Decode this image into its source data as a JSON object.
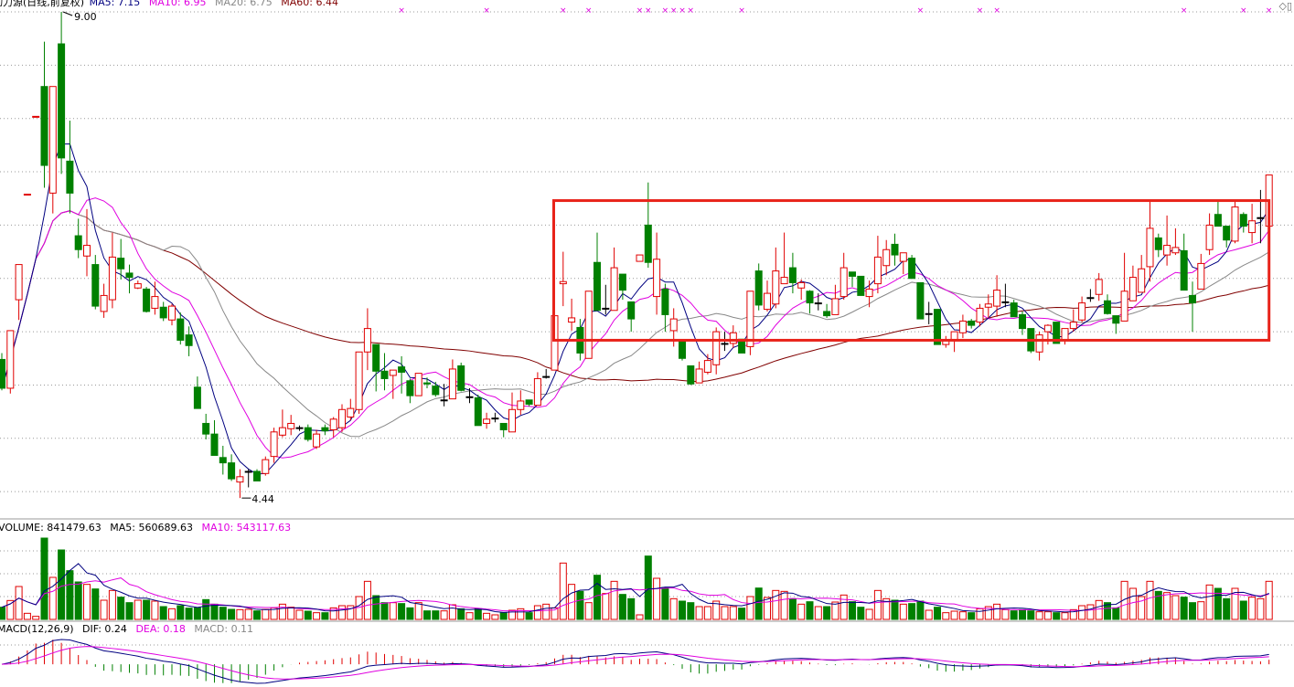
{
  "price_header": {
    "title": "动力源(日线,前复权)",
    "ma5": "MA5: 7.15",
    "ma10": "MA10: 6.95",
    "ma20": "MA20: 6.75",
    "ma60": "MA60: 6.44"
  },
  "volume_header": {
    "volume": "VOLUME: 841479.63",
    "ma5": "MA5: 560689.63",
    "ma10": "MA10: 543117.63"
  },
  "macd_header": {
    "name": "MACD(12,26,9)",
    "dif": "DIF: 0.24",
    "dea": "DEA: 0.18",
    "macd": "MACD: 0.11"
  },
  "corner_icons": [
    "diamond-icon",
    "window-icon"
  ],
  "colors": {
    "up": "#e00000",
    "down": "#008000",
    "flat": "#000000",
    "ma5": "#000080",
    "ma10": "#e000e0",
    "ma20": "#888888",
    "ma60": "#800000",
    "box": "#e8231a",
    "marker": "#e000e0"
  },
  "chart_data": {
    "type": "candlestick",
    "price_axis": {
      "ylim": [
        4.44,
        9.0
      ],
      "grid": [
        9.0,
        8.5,
        8.0,
        7.5,
        7.0,
        6.5,
        6.0,
        5.5,
        5.0,
        4.5
      ],
      "grid_on": true
    },
    "annotations": {
      "max_label": "9.00",
      "max_index": 7,
      "min_label": "4.44",
      "min_index": 28
    },
    "highlight_box": {
      "start_index": 65,
      "end_index": 149,
      "high": 7.23,
      "low": 5.92
    },
    "signal_marker_indices": [
      47,
      57,
      66,
      69,
      75,
      76,
      78,
      79,
      80,
      81,
      87,
      108,
      115,
      117,
      139,
      146,
      149
    ],
    "ohlc": [
      [
        5.74,
        5.8,
        5.45,
        5.47
      ],
      [
        5.47,
        6.01,
        5.42,
        6.01
      ],
      [
        6.3,
        6.63,
        6.11,
        6.63
      ],
      [
        7.29,
        7.29,
        7.29,
        7.29
      ],
      [
        8.02,
        8.02,
        8.02,
        8.02
      ],
      [
        8.3,
        8.72,
        7.35,
        7.56
      ],
      [
        7.3,
        8.3,
        7.11,
        8.3
      ],
      [
        8.7,
        9.0,
        7.48,
        7.63
      ],
      [
        7.6,
        7.98,
        7.11,
        7.3
      ],
      [
        6.9,
        7.06,
        6.69,
        6.77
      ],
      [
        6.71,
        7.15,
        6.52,
        6.81
      ],
      [
        6.63,
        6.72,
        6.21,
        6.24
      ],
      [
        6.19,
        6.45,
        6.13,
        6.34
      ],
      [
        6.3,
        6.93,
        6.22,
        6.7
      ],
      [
        6.69,
        6.87,
        6.49,
        6.59
      ],
      [
        6.55,
        6.63,
        6.36,
        6.51
      ],
      [
        6.41,
        6.48,
        6.4,
        6.45
      ],
      [
        6.4,
        6.42,
        6.18,
        6.19
      ],
      [
        6.22,
        6.47,
        6.16,
        6.33
      ],
      [
        6.23,
        6.28,
        6.1,
        6.13
      ],
      [
        6.11,
        6.26,
        6.06,
        6.24
      ],
      [
        6.12,
        6.18,
        5.88,
        5.92
      ],
      [
        5.97,
        6.05,
        5.77,
        5.87
      ],
      [
        5.48,
        5.58,
        5.28,
        5.28
      ],
      [
        5.14,
        5.23,
        4.99,
        5.04
      ],
      [
        5.04,
        5.17,
        4.84,
        4.84
      ],
      [
        4.82,
        4.93,
        4.66,
        4.77
      ],
      [
        4.77,
        4.85,
        4.6,
        4.62
      ],
      [
        4.59,
        4.71,
        4.44,
        4.64
      ],
      [
        4.69,
        4.71,
        4.54,
        4.69
      ],
      [
        4.69,
        4.71,
        4.6,
        4.6
      ],
      [
        4.67,
        4.83,
        4.65,
        4.8
      ],
      [
        4.83,
        5.1,
        4.77,
        5.06
      ],
      [
        5.03,
        5.27,
        5.01,
        5.1
      ],
      [
        5.09,
        5.22,
        5.03,
        5.14
      ],
      [
        5.1,
        5.12,
        5.07,
        5.1
      ],
      [
        5.1,
        5.13,
        4.97,
        4.99
      ],
      [
        4.92,
        5.08,
        4.9,
        5.04
      ],
      [
        5.1,
        5.13,
        5.03,
        5.07
      ],
      [
        5.08,
        5.2,
        5.01,
        5.18
      ],
      [
        5.1,
        5.32,
        5.06,
        5.27
      ],
      [
        5.2,
        5.37,
        5.17,
        5.28
      ],
      [
        5.27,
        5.81,
        5.23,
        5.81
      ],
      [
        5.81,
        6.22,
        5.64,
        6.03
      ],
      [
        5.88,
        5.88,
        5.44,
        5.63
      ],
      [
        5.63,
        5.8,
        5.45,
        5.56
      ],
      [
        5.59,
        5.64,
        5.37,
        5.64
      ],
      [
        5.67,
        5.77,
        5.42,
        5.62
      ],
      [
        5.54,
        5.56,
        5.33,
        5.4
      ],
      [
        5.4,
        5.61,
        5.4,
        5.61
      ],
      [
        5.52,
        5.57,
        5.47,
        5.51
      ],
      [
        5.49,
        5.53,
        5.39,
        5.41
      ],
      [
        5.36,
        5.51,
        5.3,
        5.36
      ],
      [
        5.37,
        5.74,
        5.37,
        5.65
      ],
      [
        5.68,
        5.71,
        5.44,
        5.45
      ],
      [
        5.39,
        5.47,
        5.33,
        5.39
      ],
      [
        5.38,
        5.41,
        5.12,
        5.12
      ],
      [
        5.14,
        5.24,
        5.09,
        5.18
      ],
      [
        5.19,
        5.24,
        5.15,
        5.19
      ],
      [
        5.14,
        5.14,
        5.01,
        5.08
      ],
      [
        5.06,
        5.43,
        5.06,
        5.27
      ],
      [
        5.27,
        5.45,
        5.22,
        5.35
      ],
      [
        5.36,
        5.36,
        5.3,
        5.32
      ],
      [
        5.31,
        5.62,
        5.31,
        5.56
      ],
      [
        5.58,
        5.65,
        5.56,
        5.58
      ],
      [
        5.64,
        6.15,
        5.64,
        6.15
      ],
      [
        6.45,
        6.75,
        6.24,
        6.47
      ],
      [
        6.09,
        6.31,
        6.01,
        6.13
      ],
      [
        6.04,
        6.12,
        5.73,
        5.8
      ],
      [
        5.75,
        6.38,
        5.75,
        6.38
      ],
      [
        6.65,
        6.93,
        6.2,
        6.2
      ],
      [
        6.22,
        6.44,
        6.16,
        6.22
      ],
      [
        6.2,
        6.79,
        6.2,
        6.6
      ],
      [
        6.54,
        6.54,
        6.3,
        6.39
      ],
      [
        6.28,
        6.28,
        6.0,
        6.12
      ],
      [
        6.66,
        6.72,
        6.66,
        6.72
      ],
      [
        7.0,
        7.4,
        6.6,
        6.65
      ],
      [
        6.33,
        6.93,
        6.16,
        6.68
      ],
      [
        6.4,
        6.45,
        6.0,
        6.16
      ],
      [
        6.01,
        6.22,
        5.86,
        6.12
      ],
      [
        5.92,
        5.92,
        5.73,
        5.75
      ],
      [
        5.68,
        5.68,
        5.5,
        5.51
      ],
      [
        5.52,
        5.72,
        5.52,
        5.65
      ],
      [
        5.62,
        5.79,
        5.6,
        5.73
      ],
      [
        5.69,
        6.04,
        5.6,
        6.0
      ],
      [
        5.89,
        6.0,
        5.82,
        5.89
      ],
      [
        5.89,
        6.06,
        5.85,
        5.99
      ],
      [
        5.93,
        5.93,
        5.8,
        5.8
      ],
      [
        5.86,
        6.38,
        5.78,
        6.38
      ],
      [
        6.57,
        6.64,
        6.2,
        6.25
      ],
      [
        6.21,
        6.48,
        6.19,
        6.36
      ],
      [
        6.26,
        6.79,
        6.22,
        6.57
      ],
      [
        6.45,
        6.93,
        6.45,
        6.51
      ],
      [
        6.6,
        6.74,
        6.36,
        6.46
      ],
      [
        6.41,
        6.49,
        6.3,
        6.46
      ],
      [
        6.38,
        6.39,
        6.17,
        6.27
      ],
      [
        6.27,
        6.36,
        6.2,
        6.27
      ],
      [
        6.19,
        6.26,
        6.13,
        6.15
      ],
      [
        6.16,
        6.44,
        6.16,
        6.31
      ],
      [
        6.33,
        6.74,
        6.3,
        6.6
      ],
      [
        6.56,
        6.56,
        6.42,
        6.52
      ],
      [
        6.52,
        6.52,
        6.34,
        6.34
      ],
      [
        6.33,
        6.48,
        6.23,
        6.4
      ],
      [
        6.45,
        6.9,
        6.36,
        6.7
      ],
      [
        6.62,
        6.86,
        6.53,
        6.77
      ],
      [
        6.82,
        6.92,
        6.62,
        6.72
      ],
      [
        6.66,
        6.74,
        6.54,
        6.74
      ],
      [
        6.69,
        6.72,
        6.5,
        6.5
      ],
      [
        6.46,
        6.46,
        6.12,
        6.12
      ],
      [
        6.17,
        6.28,
        6.07,
        6.17
      ],
      [
        6.21,
        6.21,
        5.88,
        5.88
      ],
      [
        5.88,
        5.96,
        5.85,
        5.92
      ],
      [
        5.92,
        6.0,
        5.81,
        6.0
      ],
      [
        5.99,
        6.16,
        5.94,
        6.1
      ],
      [
        6.1,
        6.12,
        6.03,
        6.06
      ],
      [
        6.09,
        6.26,
        6.05,
        6.22
      ],
      [
        6.23,
        6.35,
        6.13,
        6.26
      ],
      [
        6.24,
        6.53,
        6.14,
        6.39
      ],
      [
        6.28,
        6.45,
        6.23,
        6.28
      ],
      [
        6.27,
        6.3,
        6.14,
        6.14
      ],
      [
        6.16,
        6.19,
        5.97,
        6.03
      ],
      [
        6.03,
        6.03,
        5.8,
        5.82
      ],
      [
        5.81,
        6.0,
        5.73,
        5.97
      ],
      [
        6.0,
        6.07,
        5.88,
        6.06
      ],
      [
        6.09,
        6.09,
        5.89,
        5.89
      ],
      [
        5.92,
        6.03,
        5.88,
        6.03
      ],
      [
        6.03,
        6.21,
        6.0,
        6.09
      ],
      [
        6.11,
        6.33,
        6.09,
        6.27
      ],
      [
        6.32,
        6.4,
        6.28,
        6.32
      ],
      [
        6.35,
        6.55,
        6.29,
        6.49
      ],
      [
        6.29,
        6.35,
        6.16,
        6.17
      ],
      [
        6.15,
        6.15,
        5.98,
        6.08
      ],
      [
        6.1,
        6.74,
        6.1,
        6.38
      ],
      [
        6.29,
        6.62,
        6.29,
        6.51
      ],
      [
        6.37,
        6.72,
        6.37,
        6.59
      ],
      [
        6.61,
        7.23,
        6.47,
        6.97
      ],
      [
        6.88,
        6.92,
        6.7,
        6.77
      ],
      [
        6.72,
        7.09,
        6.62,
        6.81
      ],
      [
        6.74,
        6.97,
        6.72,
        6.79
      ],
      [
        6.76,
        6.92,
        6.39,
        6.39
      ],
      [
        6.34,
        6.47,
        6.0,
        6.27
      ],
      [
        6.4,
        6.73,
        6.4,
        6.64
      ],
      [
        6.77,
        7.11,
        6.72,
        7.0
      ],
      [
        7.1,
        7.23,
        6.99,
        6.99
      ],
      [
        6.99,
        6.99,
        6.79,
        6.86
      ],
      [
        6.85,
        7.23,
        6.83,
        7.17
      ],
      [
        7.1,
        7.12,
        6.93,
        6.99
      ],
      [
        6.93,
        7.2,
        6.83,
        7.04
      ],
      [
        7.07,
        7.33,
        6.83,
        7.07
      ],
      [
        6.99,
        7.47,
        6.99,
        7.47
      ]
    ],
    "volume": [
      269200,
      417260,
      726840,
      134600,
      67300,
      1796910,
      928740,
      1534440,
      1076800,
      827790,
      773950,
      673000,
      423990,
      639350,
      491290,
      370150,
      423990,
      423990,
      403800,
      282660,
      235550,
      302850,
      249010,
      255740,
      437450,
      336500,
      269200,
      222090,
      215360,
      222090,
      188440,
      222090,
      255740,
      336500,
      269200,
      201900,
      181710,
      148060,
      148060,
      255740,
      302850,
      302850,
      504750,
      841250,
      524940,
      370150,
      370150,
      349960,
      255740,
      370150,
      188440,
      188440,
      188440,
      323040,
      235550,
      148060,
      235550,
      134600,
      100950,
      148060,
      201900,
      235550,
      148060,
      302850,
      336500,
      255740,
      1245050,
      773950,
      619160,
      370150,
      975850,
      572050,
      841250,
      551860,
      457640,
      100950,
      1399840,
      908550,
      706650,
      457640,
      403800,
      370150,
      282660,
      282660,
      403800,
      282660,
      282660,
      249010,
      504750,
      693190,
      484560,
      639350,
      619160,
      457640,
      336500,
      390340,
      282660,
      282660,
      383610,
      538400,
      390340,
      269200,
      222090,
      639350,
      457640,
      423990,
      336500,
      349960,
      403800,
      201900,
      269200,
      148060,
      181710,
      168250,
      148060,
      235550,
      282660,
      336500,
      215360,
      188440,
      215360,
      188440,
      168250,
      168250,
      148060,
      148060,
      215360,
      302850,
      323040,
      417260,
      370150,
      255740,
      841250,
      686460,
      504750,
      841250,
      619160,
      592240,
      524940,
      491290,
      370150,
      390340,
      760490,
      686460,
      457640,
      686460,
      403800,
      491290,
      457640,
      841479.63
    ]
  }
}
